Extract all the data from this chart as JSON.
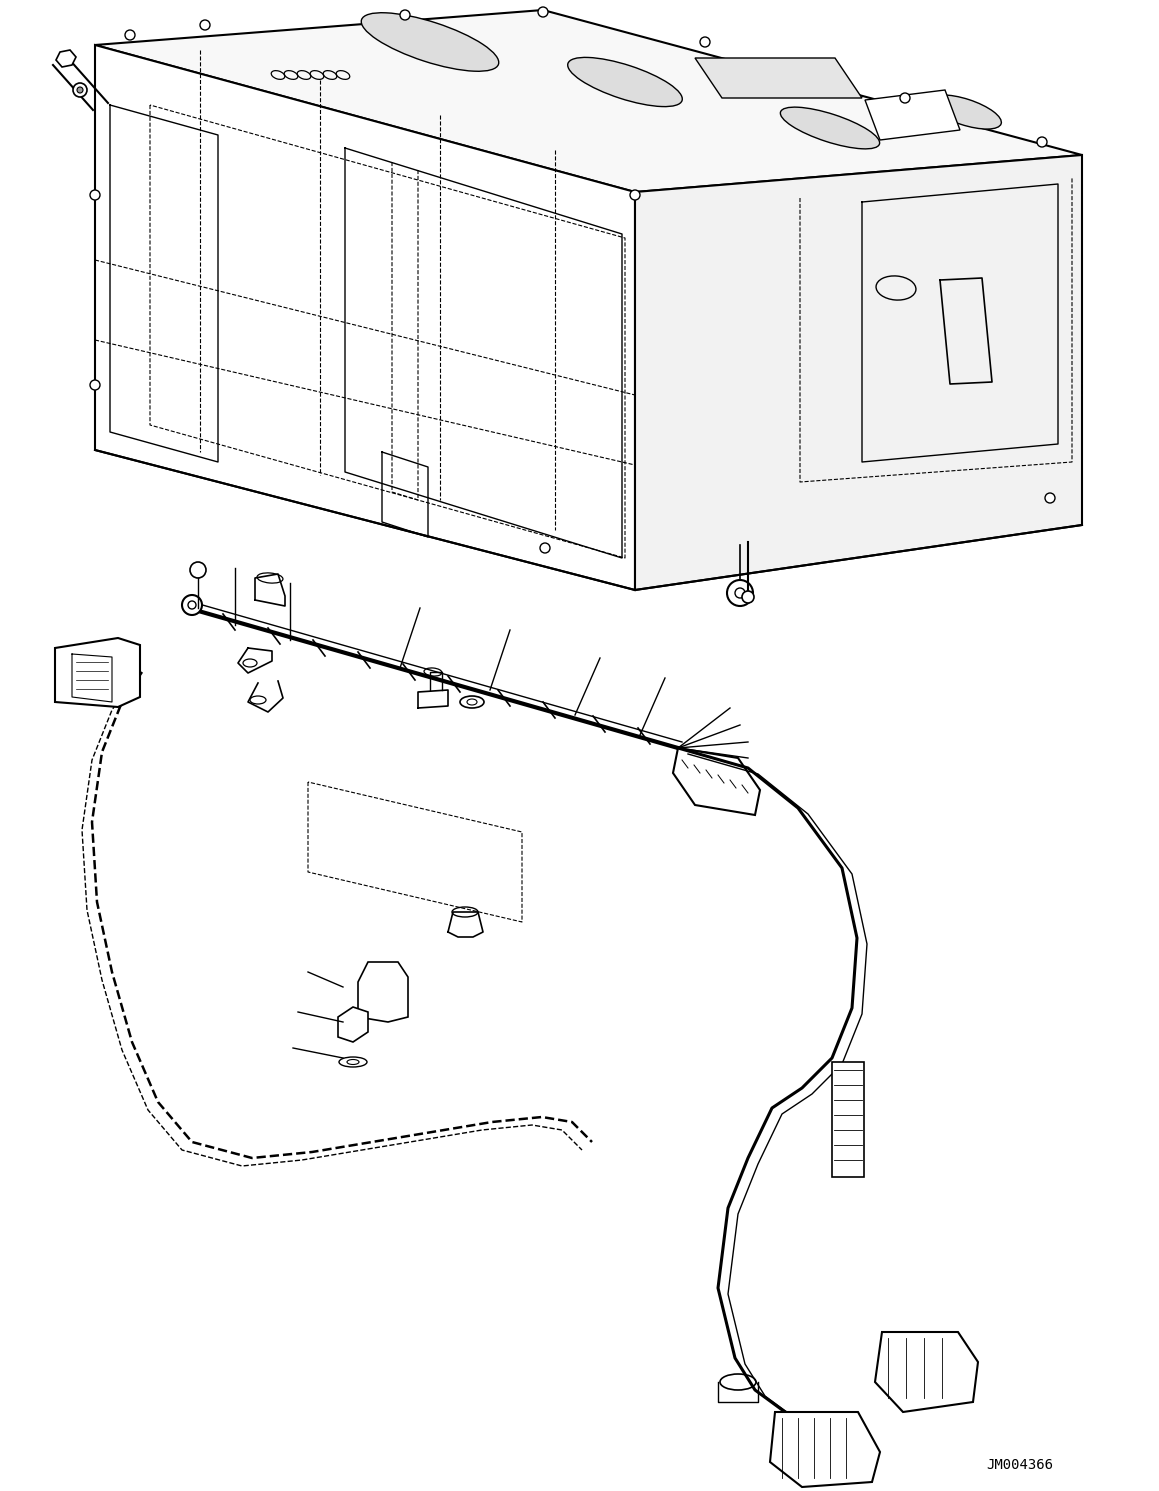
{
  "figure_id": "JM004366",
  "background_color": "#ffffff",
  "line_color": "#000000",
  "figsize": [
    11.59,
    14.91
  ],
  "dpi": 100,
  "title": "JM004366",
  "title_fontsize": 10,
  "title_family": "monospace"
}
